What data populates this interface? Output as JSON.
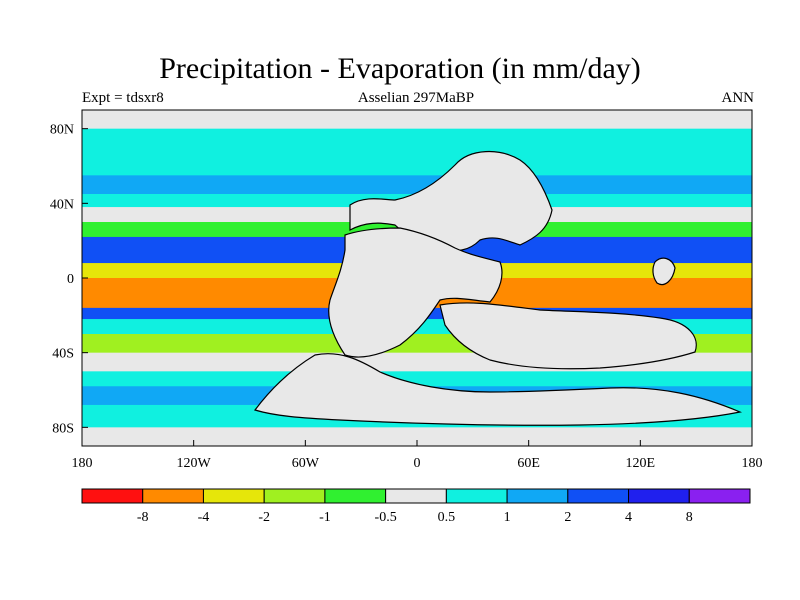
{
  "chart_data": {
    "type": "heatmap",
    "title": "Precipitation - Evaporation (in mm/day)",
    "left_label": "Expt = tdsxr8",
    "center_label": "Asselian 297MaBP",
    "right_label": "ANN",
    "x_ticks": [
      "180",
      "120W",
      "60W",
      "0",
      "60E",
      "120E",
      "180"
    ],
    "y_ticks": [
      "80N",
      "40N",
      "0",
      "40S",
      "80S"
    ],
    "colorbar_labels": [
      "-8",
      "-4",
      "-2",
      "-1",
      "-0.5",
      "0.5",
      "1",
      "2",
      "4",
      "8"
    ],
    "colorbar_colors": [
      "#ff1010",
      "#ff8a00",
      "#e6e60a",
      "#a0f020",
      "#30f030",
      "#e8e8e8",
      "#10f0e0",
      "#10a8f5",
      "#1050f5",
      "#2020ee",
      "#8a20f0"
    ],
    "zonal_pattern": [
      {
        "lat": 90,
        "value": 0.3
      },
      {
        "lat": 80,
        "value": 0.7
      },
      {
        "lat": 68,
        "value": 0.9
      },
      {
        "lat": 55,
        "value": 1.6
      },
      {
        "lat": 45,
        "value": 0.6
      },
      {
        "lat": 38,
        "value": -0.3
      },
      {
        "lat": 30,
        "value": -0.8
      },
      {
        "lat": 22,
        "value": 2.5
      },
      {
        "lat": 14,
        "value": 3.5
      },
      {
        "lat": 8,
        "value": -2.5
      },
      {
        "lat": 0,
        "value": -5.0
      },
      {
        "lat": -8,
        "value": -4.2
      },
      {
        "lat": -16,
        "value": 2.5
      },
      {
        "lat": -22,
        "value": 0.8
      },
      {
        "lat": -30,
        "value": -1.8
      },
      {
        "lat": -40,
        "value": -0.4
      },
      {
        "lat": -50,
        "value": 0.7
      },
      {
        "lat": -58,
        "value": 1.5
      },
      {
        "lat": -68,
        "value": 0.6
      },
      {
        "lat": -80,
        "value": 0.3
      },
      {
        "lat": -90,
        "value": 0.2
      }
    ]
  }
}
